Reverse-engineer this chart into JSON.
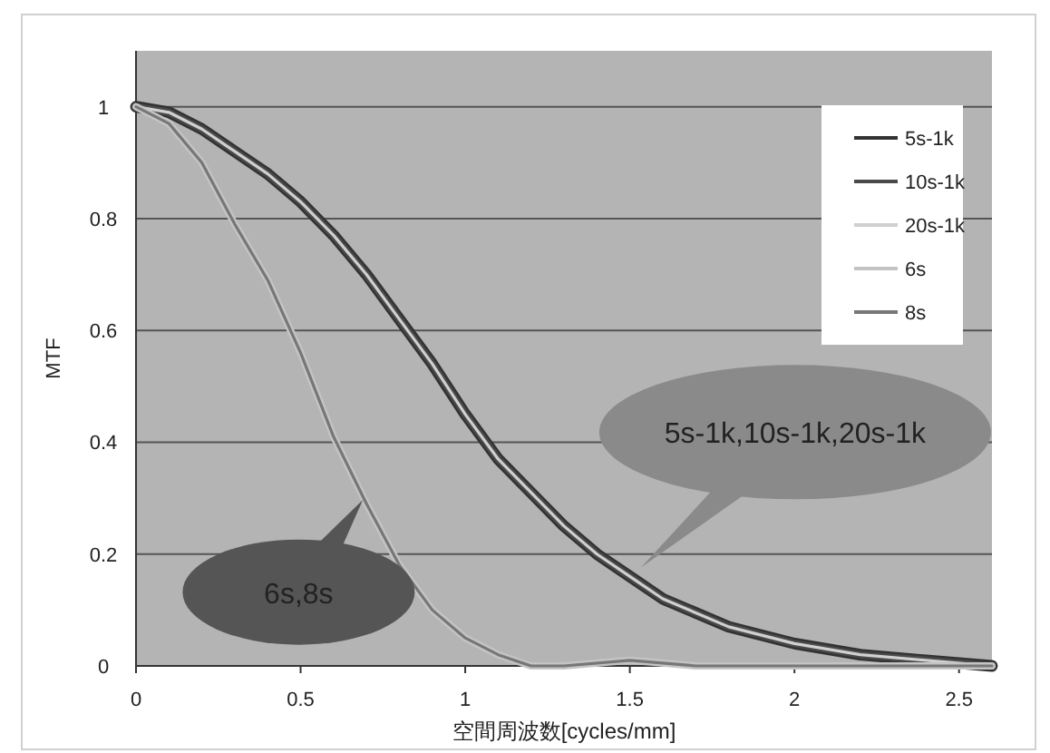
{
  "chart_data": {
    "type": "line",
    "xlabel": "空間周波数[cycles/mm]",
    "ylabel": "MTF",
    "xlim": [
      0,
      2.6
    ],
    "ylim": [
      0,
      1.1
    ],
    "xticks": [
      0,
      0.5,
      1,
      1.5,
      2,
      2.5
    ],
    "yticks": [
      0,
      0.2,
      0.4,
      0.6,
      0.8,
      1
    ],
    "grid": "y",
    "legend": "top right",
    "marker": "none",
    "line_style": "solid",
    "annotations": [
      "6s,8s",
      "5s-1k,10s-1k,20s-1k"
    ],
    "series": [
      {
        "name": "5s-1k",
        "color": "#333333",
        "x": [
          0,
          0.1,
          0.2,
          0.3,
          0.4,
          0.5,
          0.6,
          0.7,
          0.8,
          0.9,
          1.0,
          1.1,
          1.2,
          1.3,
          1.4,
          1.5,
          1.6,
          1.8,
          2.0,
          2.2,
          2.4,
          2.6
        ],
        "values": [
          1,
          0.99,
          0.96,
          0.92,
          0.88,
          0.83,
          0.77,
          0.7,
          0.62,
          0.54,
          0.45,
          0.37,
          0.31,
          0.25,
          0.2,
          0.16,
          0.12,
          0.07,
          0.04,
          0.02,
          0.01,
          0.0
        ]
      },
      {
        "name": "10s-1k",
        "color": "#4a4a4a",
        "x": [
          0,
          0.1,
          0.2,
          0.3,
          0.4,
          0.5,
          0.6,
          0.7,
          0.8,
          0.9,
          1.0,
          1.1,
          1.2,
          1.3,
          1.4,
          1.5,
          1.6,
          1.8,
          2.0,
          2.2,
          2.4,
          2.6
        ],
        "values": [
          1,
          0.99,
          0.96,
          0.92,
          0.88,
          0.83,
          0.77,
          0.7,
          0.62,
          0.54,
          0.45,
          0.37,
          0.31,
          0.25,
          0.2,
          0.16,
          0.12,
          0.07,
          0.04,
          0.02,
          0.01,
          0.0
        ]
      },
      {
        "name": "20s-1k",
        "color": "#d0d0d0",
        "x": [
          0,
          0.1,
          0.2,
          0.3,
          0.4,
          0.5,
          0.6,
          0.7,
          0.8,
          0.9,
          1.0,
          1.1,
          1.2,
          1.3,
          1.4,
          1.5,
          1.6,
          1.8,
          2.0,
          2.2,
          2.4,
          2.6
        ],
        "values": [
          1,
          0.99,
          0.96,
          0.92,
          0.88,
          0.83,
          0.77,
          0.7,
          0.62,
          0.54,
          0.45,
          0.37,
          0.31,
          0.25,
          0.2,
          0.16,
          0.12,
          0.07,
          0.04,
          0.02,
          0.01,
          0.0
        ]
      },
      {
        "name": "6s",
        "color": "#c4c4c4",
        "x": [
          0,
          0.1,
          0.2,
          0.3,
          0.4,
          0.5,
          0.6,
          0.7,
          0.8,
          0.9,
          1.0,
          1.1,
          1.2,
          1.3,
          1.5,
          1.7,
          2.0,
          2.6
        ],
        "values": [
          1,
          0.97,
          0.9,
          0.79,
          0.69,
          0.56,
          0.41,
          0.29,
          0.18,
          0.1,
          0.05,
          0.02,
          0.0,
          0.0,
          0.01,
          0.0,
          0.0,
          0.0
        ]
      },
      {
        "name": "8s",
        "color": "#777777",
        "x": [
          0,
          0.1,
          0.2,
          0.3,
          0.4,
          0.5,
          0.6,
          0.7,
          0.8,
          0.9,
          1.0,
          1.1,
          1.2,
          1.3,
          1.5,
          1.7,
          2.0,
          2.6
        ],
        "values": [
          1,
          0.97,
          0.9,
          0.79,
          0.69,
          0.56,
          0.41,
          0.29,
          0.18,
          0.1,
          0.05,
          0.02,
          0.0,
          0.0,
          0.01,
          0.0,
          0.0,
          0.0
        ]
      }
    ]
  }
}
